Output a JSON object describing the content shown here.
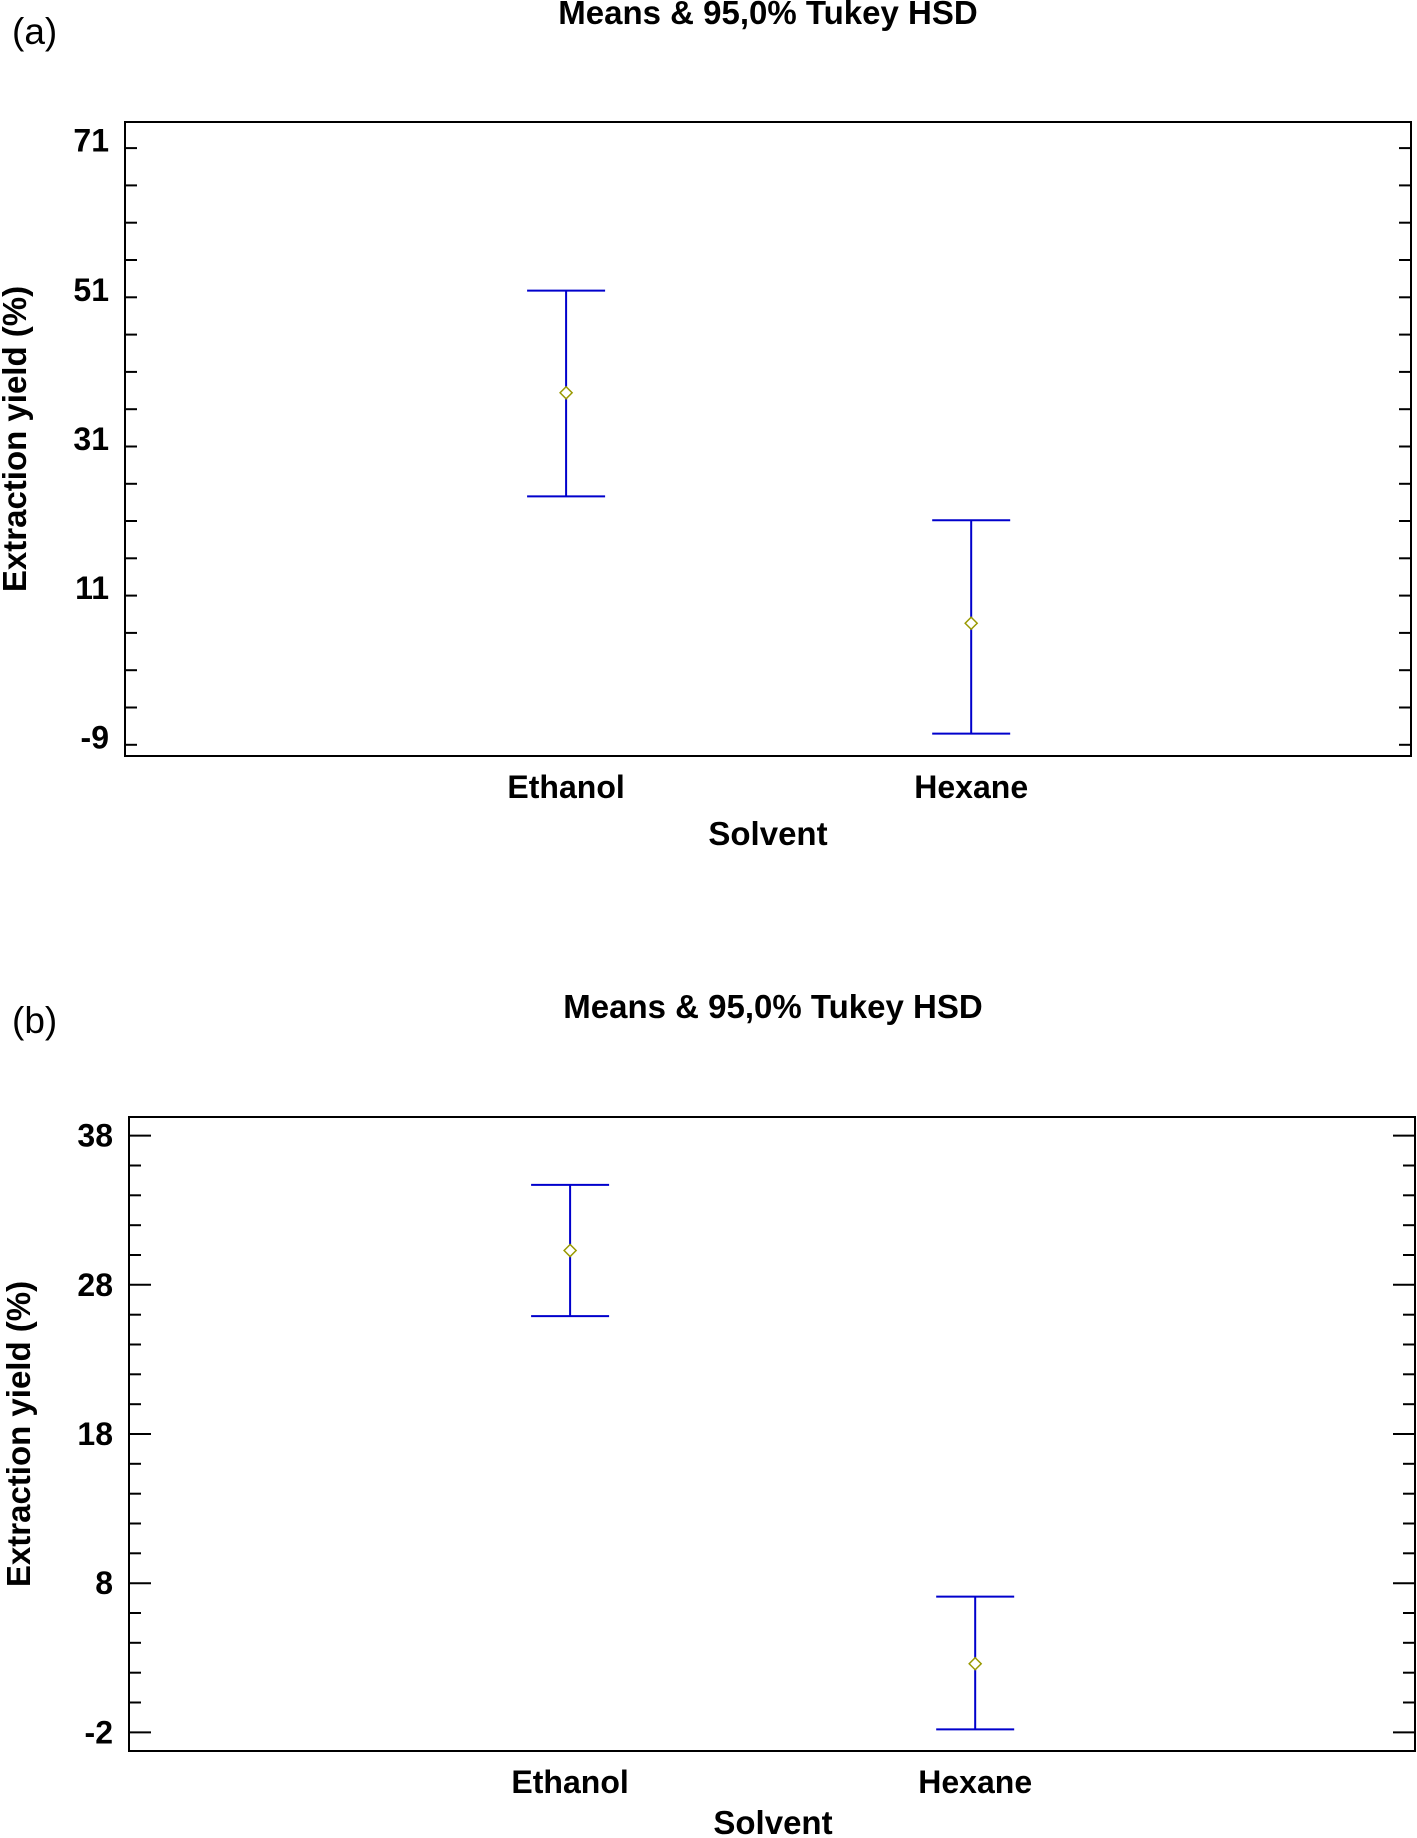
{
  "chart_data": [
    {
      "panel_label": "(a)",
      "type": "scatter",
      "title": "Means & 95,0% Tukey HSD",
      "xlabel": "Solvent",
      "ylabel": "Extraction yield (%)",
      "categories": [
        "Ethanol",
        "Hexane"
      ],
      "means": [
        37.2,
        6.3
      ],
      "intervals": [
        [
          23.3,
          50.9
        ],
        [
          -8.5,
          20.1
        ]
      ],
      "ylim": [
        -11.5,
        73.5
      ],
      "yticks": [
        -9,
        11,
        31,
        51,
        71
      ],
      "yticks_labels": [
        "-9",
        "11",
        "31",
        "51",
        "71"
      ],
      "minor_tick_step": 5,
      "grid": false,
      "colors": {
        "interval": "#0000cc",
        "mean_marker": "#999900"
      }
    },
    {
      "panel_label": "(b)",
      "type": "scatter",
      "title": "Means & 95,0% Tukey HSD",
      "xlabel": "Solvent",
      "ylabel": "Extraction yield (%)",
      "categories": [
        "Ethanol",
        "Hexane"
      ],
      "means": [
        30.3,
        2.6
      ],
      "intervals": [
        [
          25.9,
          34.7
        ],
        [
          -1.8,
          7.1
        ]
      ],
      "ylim": [
        -3.25,
        39.25
      ],
      "yticks": [
        -2,
        8,
        18,
        28,
        38
      ],
      "yticks_labels": [
        "-2",
        "8",
        "18",
        "28",
        "38"
      ],
      "minor_tick_step": 2,
      "grid": false,
      "colors": {
        "interval": "#0000cc",
        "mean_marker": "#999900"
      }
    }
  ]
}
